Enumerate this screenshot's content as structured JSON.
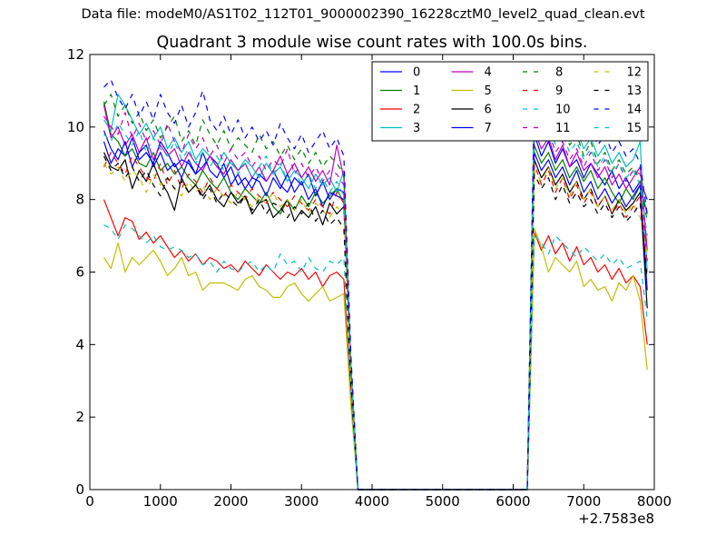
{
  "suptitle": "Data file: modeM0/AS1T02_112T01_9000002390_16228cztM0_level2_quad_clean.evt",
  "chart_data": {
    "type": "line",
    "title": "Quadrant 3 module wise count rates with 100.0s bins.",
    "xlabel": "",
    "ylabel": "",
    "x_offset_label": "+2.7583e8",
    "xlim": [
      0,
      8000
    ],
    "ylim": [
      0,
      12
    ],
    "xticks": [
      "0",
      "1000",
      "2000",
      "3000",
      "4000",
      "5000",
      "6000",
      "7000",
      "8000"
    ],
    "yticks": [
      "0",
      "2",
      "4",
      "6",
      "8",
      "10",
      "12"
    ],
    "grid": false,
    "legend_position": "top-right",
    "legend_columns": 4,
    "segment1": {
      "x_start": 200,
      "x_step": 100,
      "x_end": 3600
    },
    "gap": {
      "x": [
        3700,
        3800,
        6200
      ],
      "y": [
        null,
        0,
        0
      ]
    },
    "segment2": {
      "x_start": 6300,
      "x_step": 100,
      "x_end": 7900
    },
    "series": [
      {
        "name": "0",
        "color": "#0000ff",
        "dash": "solid",
        "seg1": [
          9.6,
          9.0,
          9.4,
          9.2,
          9.7,
          9.1,
          9.3,
          9.0,
          9.6,
          9.3,
          8.9,
          9.1,
          9.0,
          8.7,
          8.9,
          9.2,
          9.0,
          8.6,
          8.9,
          8.4,
          8.6,
          8.3,
          8.7,
          8.5,
          8.8,
          8.4,
          8.2,
          8.6,
          8.4,
          8.7,
          8.1,
          8.5,
          8.0,
          8.3,
          8.2
        ],
        "seg2_y3700": 3.2,
        "seg2": [
          9.8,
          9.2,
          9.6,
          9.0,
          9.4,
          8.9,
          9.1,
          8.6,
          9.0,
          8.7,
          8.4,
          8.8,
          8.3,
          8.6,
          8.2,
          8.5,
          8.0
        ]
      },
      {
        "name": "1",
        "color": "#008000",
        "dash": "solid",
        "seg1": [
          10.7,
          9.8,
          9.6,
          9.2,
          9.4,
          9.0,
          8.9,
          9.3,
          8.8,
          9.0,
          8.7,
          8.9,
          8.6,
          8.4,
          8.8,
          8.5,
          8.3,
          8.6,
          8.2,
          8.0,
          8.3,
          8.1,
          7.9,
          8.2,
          7.8,
          7.6,
          8.0,
          7.7,
          8.1,
          7.8,
          8.2,
          7.9,
          8.1,
          8.3,
          7.9
        ],
        "seg2_y3700": 3.1,
        "seg2": [
          9.5,
          9.0,
          9.3,
          8.8,
          9.1,
          8.6,
          8.9,
          8.5,
          8.8,
          8.3,
          8.6,
          8.2,
          7.9,
          8.3,
          8.0,
          8.4,
          7.6
        ]
      },
      {
        "name": "2",
        "color": "#ff0000",
        "dash": "solid",
        "seg1": [
          8.0,
          7.5,
          7.0,
          7.5,
          7.4,
          6.9,
          7.1,
          6.8,
          7.0,
          6.7,
          6.4,
          6.6,
          6.3,
          6.5,
          6.2,
          6.4,
          6.3,
          6.1,
          6.2,
          6.0,
          6.3,
          6.1,
          5.9,
          6.2,
          6.0,
          5.8,
          6.0,
          5.9,
          6.1,
          5.8,
          6.0,
          5.6,
          5.9,
          6.0,
          5.8
        ],
        "seg2_y3700": 2.6,
        "seg2": [
          7.1,
          6.6,
          7.0,
          6.5,
          6.8,
          6.3,
          6.7,
          6.2,
          6.4,
          6.0,
          6.2,
          5.8,
          6.1,
          5.7,
          5.9,
          5.6,
          4.0
        ]
      },
      {
        "name": "3",
        "color": "#00bfbf",
        "dash": "solid",
        "seg1": [
          10.2,
          9.9,
          10.9,
          10.6,
          10.2,
          9.8,
          10.1,
          9.7,
          10.0,
          9.4,
          9.7,
          9.3,
          9.6,
          9.1,
          9.4,
          9.2,
          8.9,
          9.3,
          9.0,
          8.8,
          9.1,
          8.9,
          8.6,
          9.0,
          8.7,
          8.9,
          8.5,
          8.8,
          8.6,
          8.3,
          8.7,
          8.4,
          8.6,
          8.2,
          8.8
        ],
        "seg2_y3700": 3.4,
        "seg2": [
          10.8,
          10.2,
          10.5,
          9.8,
          10.1,
          9.6,
          9.9,
          9.4,
          9.7,
          9.2,
          9.5,
          9.0,
          9.3,
          8.9,
          9.1,
          9.6,
          6.0
        ]
      },
      {
        "name": "4",
        "color": "#bf00bf",
        "dash": "solid",
        "seg1": [
          10.6,
          9.7,
          10.0,
          9.5,
          9.8,
          9.3,
          9.7,
          9.1,
          9.5,
          9.2,
          9.4,
          8.9,
          9.3,
          9.0,
          8.8,
          9.2,
          8.9,
          8.7,
          9.1,
          8.8,
          9.0,
          8.6,
          8.9,
          8.5,
          8.8,
          9.2,
          8.7,
          9.0,
          8.6,
          8.9,
          8.5,
          8.8,
          8.4,
          9.5,
          8.6
        ],
        "seg2_y3700": 3.3,
        "seg2": [
          9.9,
          9.4,
          9.7,
          9.1,
          9.5,
          8.9,
          9.3,
          8.8,
          9.0,
          8.6,
          8.9,
          8.4,
          8.7,
          8.3,
          8.6,
          8.9,
          6.6
        ]
      },
      {
        "name": "5",
        "color": "#bfbf00",
        "dash": "solid",
        "seg1": [
          6.4,
          6.1,
          6.8,
          6.0,
          6.4,
          6.2,
          6.4,
          6.6,
          6.3,
          5.9,
          6.1,
          6.4,
          5.9,
          6.0,
          5.5,
          5.7,
          5.7,
          5.7,
          5.6,
          5.5,
          5.8,
          5.9,
          5.6,
          5.5,
          5.3,
          5.3,
          5.6,
          5.7,
          5.4,
          5.2,
          5.4,
          5.6,
          5.2,
          5.3,
          5.4
        ],
        "seg2_y3700": 2.3,
        "seg2": [
          7.2,
          6.7,
          6.0,
          6.4,
          6.2,
          6.0,
          6.3,
          5.6,
          5.8,
          5.5,
          5.6,
          5.2,
          5.7,
          5.5,
          5.9,
          5.2,
          3.3
        ]
      },
      {
        "name": "6",
        "color": "#000000",
        "dash": "solid",
        "seg1": [
          9.3,
          8.9,
          8.8,
          9.1,
          8.3,
          8.8,
          8.5,
          9.0,
          8.5,
          8.2,
          7.7,
          8.6,
          8.2,
          8.4,
          8.1,
          8.4,
          8.0,
          7.8,
          8.2,
          7.9,
          8.1,
          7.6,
          7.9,
          8.0,
          7.5,
          7.7,
          8.0,
          7.4,
          7.7,
          7.5,
          7.8,
          7.3,
          7.9,
          7.6,
          7.8
        ],
        "seg2_y3700": 3.0,
        "seg2": [
          9.1,
          8.6,
          8.9,
          8.4,
          8.7,
          8.2,
          8.5,
          8.0,
          8.3,
          7.8,
          8.1,
          7.6,
          8.0,
          7.7,
          7.9,
          8.2,
          5.0
        ]
      },
      {
        "name": "7",
        "color": "#0000ff",
        "dash": "solid",
        "seg1": [
          9.9,
          9.4,
          9.1,
          9.6,
          8.9,
          9.3,
          9.5,
          8.9,
          9.3,
          8.8,
          9.0,
          8.6,
          9.1,
          8.7,
          9.3,
          8.8,
          8.6,
          9.0,
          8.4,
          8.7,
          8.3,
          8.6,
          8.5,
          8.1,
          8.6,
          8.3,
          8.7,
          8.2,
          8.5,
          8.0,
          8.3,
          7.8,
          8.2,
          8.1,
          8.0
        ],
        "seg2_y3700": 3.0,
        "seg2": [
          9.3,
          8.8,
          9.1,
          8.6,
          8.9,
          8.4,
          8.8,
          8.2,
          8.5,
          8.0,
          8.3,
          7.9,
          8.2,
          7.8,
          8.1,
          8.4,
          5.5
        ]
      },
      {
        "name": "8",
        "color": "#008000",
        "dash": "dashed",
        "seg1": [
          10.6,
          10.9,
          10.3,
          10.6,
          10.1,
          10.4,
          9.9,
          10.2,
          9.7,
          10.0,
          10.3,
          9.6,
          9.9,
          9.5,
          10.2,
          9.8,
          9.5,
          9.9,
          9.4,
          9.7,
          9.5,
          9.3,
          9.8,
          9.4,
          9.6,
          9.2,
          9.5,
          9.1,
          9.4,
          9.0,
          9.3,
          8.9,
          9.2,
          9.0,
          8.7
        ],
        "seg2_y3700": 3.6,
        "seg2": [
          10.6,
          10.0,
          10.3,
          9.7,
          10.0,
          9.5,
          9.8,
          9.2,
          9.6,
          9.0,
          9.3,
          8.8,
          9.1,
          8.7,
          8.9,
          8.5,
          7.4
        ]
      },
      {
        "name": "9",
        "color": "#ff0000",
        "dash": "dashed",
        "seg1": [
          8.9,
          9.3,
          9.0,
          8.7,
          9.2,
          8.9,
          8.6,
          8.5,
          9.0,
          8.4,
          8.8,
          8.3,
          8.7,
          8.5,
          8.2,
          8.6,
          8.3,
          8.1,
          8.4,
          8.2,
          8.0,
          8.3,
          8.1,
          7.9,
          8.2,
          8.0,
          7.8,
          8.1,
          7.9,
          7.7,
          8.0,
          7.8,
          7.6,
          8.2,
          7.9
        ],
        "seg2_y3700": 3.1,
        "seg2": [
          9.0,
          8.4,
          8.8,
          8.2,
          8.6,
          8.0,
          8.4,
          7.9,
          8.2,
          7.8,
          8.1,
          7.6,
          7.9,
          7.5,
          7.8,
          8.1,
          6.2
        ]
      },
      {
        "name": "10",
        "color": "#00bfbf",
        "dash": "dashed",
        "seg1": [
          7.3,
          7.2,
          6.9,
          7.3,
          7.2,
          7.0,
          6.8,
          7.0,
          6.7,
          6.6,
          6.7,
          6.6,
          6.4,
          6.5,
          6.2,
          6.3,
          6.0,
          6.3,
          6.1,
          6.0,
          6.2,
          6.3,
          6.0,
          6.2,
          6.0,
          6.5,
          6.2,
          6.3,
          6.0,
          6.4,
          6.1,
          6.0,
          6.3,
          6.2,
          6.4
        ],
        "seg2_y3700": 2.7,
        "seg2": [
          7.0,
          6.8,
          6.5,
          7.0,
          6.8,
          6.6,
          6.4,
          6.7,
          6.5,
          6.3,
          6.5,
          6.2,
          6.4,
          6.1,
          6.2,
          6.3,
          4.7
        ]
      },
      {
        "name": "11",
        "color": "#bf00bf",
        "dash": "dashed",
        "seg1": [
          10.3,
          10.0,
          9.8,
          10.4,
          9.7,
          10.1,
          9.6,
          9.9,
          9.5,
          10.1,
          9.6,
          9.3,
          9.8,
          9.4,
          9.7,
          9.2,
          9.5,
          9.0,
          9.4,
          9.1,
          9.3,
          8.9,
          9.2,
          8.8,
          9.1,
          8.9,
          9.4,
          8.7,
          9.0,
          8.6,
          8.9,
          8.5,
          8.8,
          8.7,
          8.4
        ],
        "seg2_y3700": 3.4,
        "seg2": [
          10.0,
          9.6,
          9.9,
          9.3,
          9.6,
          9.1,
          9.4,
          8.9,
          9.3,
          8.8,
          9.1,
          8.6,
          9.0,
          8.5,
          8.8,
          8.7,
          6.3
        ]
      },
      {
        "name": "12",
        "color": "#bfbf00",
        "dash": "dashed",
        "seg1": [
          9.0,
          8.7,
          8.9,
          8.5,
          8.8,
          8.6,
          8.2,
          8.7,
          8.4,
          8.6,
          8.3,
          8.1,
          8.5,
          8.2,
          8.4,
          8.0,
          8.3,
          8.1,
          7.9,
          8.2,
          8.0,
          7.8,
          8.1,
          7.9,
          8.2,
          7.8,
          8.0,
          7.7,
          8.0,
          7.6,
          7.9,
          7.7,
          7.5,
          7.8,
          7.6
        ],
        "seg2_y3700": 3.0,
        "seg2": [
          8.8,
          8.5,
          8.9,
          8.3,
          8.6,
          8.1,
          8.5,
          8.0,
          8.3,
          7.8,
          8.1,
          7.7,
          8.0,
          7.6,
          7.9,
          7.5,
          6.5
        ]
      },
      {
        "name": "13",
        "color": "#000000",
        "dash": "dashed",
        "seg1": [
          9.2,
          8.8,
          9.0,
          8.6,
          8.9,
          8.5,
          8.8,
          8.4,
          8.1,
          8.6,
          8.3,
          8.5,
          8.2,
          8.4,
          8.0,
          8.3,
          7.9,
          8.2,
          8.0,
          7.8,
          8.1,
          7.7,
          8.0,
          7.6,
          7.9,
          7.8,
          7.5,
          7.8,
          7.6,
          7.9,
          7.4,
          7.7,
          7.3,
          7.5,
          7.2
        ],
        "seg2_y3700": 2.9,
        "seg2": [
          8.7,
          8.3,
          8.6,
          8.0,
          8.4,
          7.9,
          8.2,
          7.8,
          8.0,
          7.6,
          7.9,
          7.5,
          7.8,
          7.4,
          7.6,
          7.9,
          5.8
        ]
      },
      {
        "name": "14",
        "color": "#0000ff",
        "dash": "dashed",
        "seg1": [
          11.1,
          11.3,
          10.8,
          10.5,
          10.9,
          10.3,
          10.7,
          10.2,
          10.9,
          10.4,
          10.1,
          10.6,
          10.0,
          10.4,
          11.0,
          10.2,
          9.9,
          10.3,
          9.8,
          10.2,
          9.7,
          10.0,
          9.6,
          9.9,
          9.5,
          10.1,
          9.7,
          9.4,
          9.8,
          9.3,
          9.6,
          9.9,
          9.4,
          9.7,
          9.2
        ],
        "seg2_y3700": 3.7,
        "seg2": [
          10.9,
          10.3,
          10.6,
          10.0,
          10.4,
          9.8,
          10.2,
          9.6,
          10.0,
          9.5,
          9.8,
          9.3,
          9.6,
          9.2,
          9.4,
          9.0,
          7.6
        ]
      },
      {
        "name": "15",
        "color": "#00bfbf",
        "dash": "dashed",
        "seg1": [
          9.8,
          9.6,
          10.1,
          9.8,
          9.5,
          9.9,
          9.3,
          9.7,
          9.4,
          9.2,
          9.6,
          9.1,
          9.4,
          9.0,
          9.3,
          8.9,
          9.2,
          8.8,
          9.1,
          8.7,
          9.0,
          8.6,
          8.9,
          9.2,
          8.7,
          9.0,
          8.5,
          8.8,
          8.4,
          8.7,
          8.3,
          8.6,
          8.2,
          8.5,
          8.1
        ],
        "seg2_y3700": 3.2,
        "seg2": [
          10.3,
          9.8,
          10.1,
          9.5,
          9.8,
          9.3,
          9.6,
          9.1,
          9.4,
          8.9,
          9.2,
          8.7,
          9.0,
          8.6,
          8.8,
          8.4,
          7.0
        ]
      }
    ]
  }
}
